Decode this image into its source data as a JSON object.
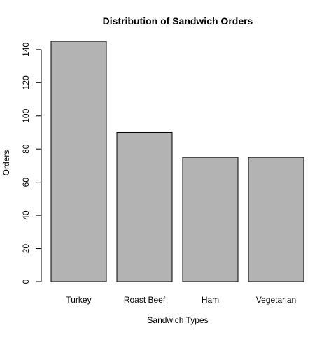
{
  "chart_data": {
    "type": "bar",
    "title": "Distribution of Sandwich Orders",
    "xlabel": "Sandwich Types",
    "ylabel": "Orders",
    "categories": [
      "Turkey",
      "Roast Beef",
      "Ham",
      "Vegetarian"
    ],
    "values": [
      145,
      90,
      75,
      75
    ],
    "ylim": [
      0,
      145
    ],
    "yticks": [
      0,
      20,
      40,
      60,
      80,
      100,
      120,
      140
    ],
    "grid": false,
    "legend": "none",
    "bar_color": "#b3b3b3",
    "border_color": "#000000"
  }
}
